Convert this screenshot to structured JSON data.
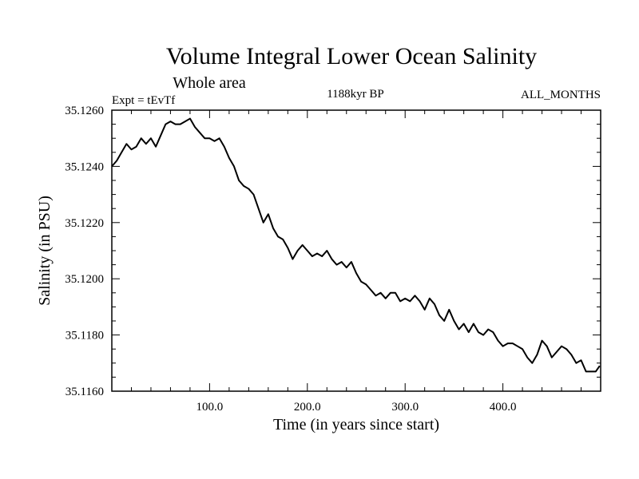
{
  "chart_data": {
    "type": "line",
    "title": "Volume Integral Lower Ocean Salinity",
    "subtitle": "Whole area",
    "expt_label": "Expt = tEvTf",
    "period_label": "1188kyr BP",
    "months_label": "ALL_MONTHS",
    "xlabel": "Time (in years since start)",
    "ylabel": "Salinity (in PSU)",
    "xlim": [
      0,
      500
    ],
    "ylim": [
      35.116,
      35.126
    ],
    "xticks": [
      100,
      200,
      300,
      400
    ],
    "xtick_labels": [
      "100.0",
      "200.0",
      "300.0",
      "400.0"
    ],
    "yticks": [
      35.116,
      35.118,
      35.12,
      35.122,
      35.124,
      35.126
    ],
    "ytick_labels": [
      "35.1160",
      "35.1180",
      "35.1200",
      "35.1220",
      "35.1240",
      "35.1260"
    ],
    "series": [
      {
        "name": "Salinity",
        "color": "#000000",
        "x": [
          0,
          5,
          10,
          15,
          20,
          25,
          30,
          35,
          40,
          45,
          50,
          55,
          60,
          65,
          70,
          75,
          80,
          85,
          90,
          95,
          100,
          105,
          110,
          115,
          120,
          125,
          130,
          135,
          140,
          145,
          150,
          155,
          160,
          165,
          170,
          175,
          180,
          185,
          190,
          195,
          200,
          205,
          210,
          215,
          220,
          225,
          230,
          235,
          240,
          245,
          250,
          255,
          260,
          265,
          270,
          275,
          280,
          285,
          290,
          295,
          300,
          305,
          310,
          315,
          320,
          325,
          330,
          335,
          340,
          345,
          350,
          355,
          360,
          365,
          370,
          375,
          380,
          385,
          390,
          395,
          400,
          405,
          410,
          415,
          420,
          425,
          430,
          435,
          440,
          445,
          450,
          455,
          460,
          465,
          470,
          475,
          480,
          485,
          490,
          495,
          499
        ],
        "values": [
          35.124,
          35.1242,
          35.1245,
          35.1248,
          35.1246,
          35.1247,
          35.125,
          35.1248,
          35.125,
          35.1247,
          35.1251,
          35.1255,
          35.1256,
          35.1255,
          35.1255,
          35.1256,
          35.1257,
          35.1254,
          35.1252,
          35.125,
          35.125,
          35.1249,
          35.125,
          35.1247,
          35.1243,
          35.124,
          35.1235,
          35.1233,
          35.1232,
          35.123,
          35.1225,
          35.122,
          35.1223,
          35.1218,
          35.1215,
          35.1214,
          35.1211,
          35.1207,
          35.121,
          35.1212,
          35.121,
          35.1208,
          35.1209,
          35.1208,
          35.121,
          35.1207,
          35.1205,
          35.1206,
          35.1204,
          35.1206,
          35.1202,
          35.1199,
          35.1198,
          35.1196,
          35.1194,
          35.1195,
          35.1193,
          35.1195,
          35.1195,
          35.1192,
          35.1193,
          35.1192,
          35.1194,
          35.1192,
          35.1189,
          35.1193,
          35.1191,
          35.1187,
          35.1185,
          35.1189,
          35.1185,
          35.1182,
          35.1184,
          35.1181,
          35.1184,
          35.1181,
          35.118,
          35.1182,
          35.1181,
          35.1178,
          35.1176,
          35.1177,
          35.1177,
          35.1176,
          35.1175,
          35.1172,
          35.117,
          35.1173,
          35.1178,
          35.1176,
          35.1172,
          35.1174,
          35.1176,
          35.1175,
          35.1173,
          35.117,
          35.1171,
          35.1167,
          35.1167,
          35.1167,
          35.1169
        ]
      }
    ]
  }
}
